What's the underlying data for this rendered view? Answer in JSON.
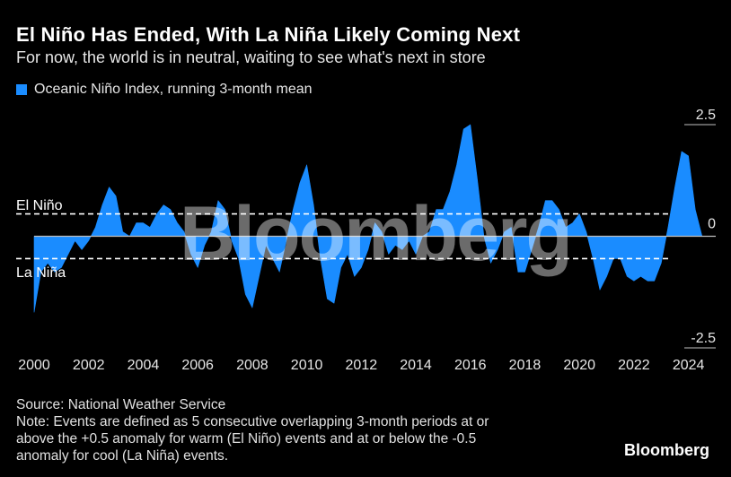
{
  "header": {
    "title": "El Niño Has Ended, With La Niña Likely Coming Next",
    "subtitle": "For now, the world is in neutral, waiting to see what's next in store"
  },
  "legend": {
    "label": "Oceanic Niño Index, running 3-month mean",
    "color": "#1a8cff"
  },
  "watermark": "Bloomberg",
  "thresholds": {
    "el_nino_label": "El Niño",
    "la_nina_label": "La Niña",
    "el_nino": 0.5,
    "la_nina": -0.5
  },
  "footer": {
    "source": "Source: National Weather Service",
    "note_lines": [
      "Note: Events are defined as 5 consecutive overlapping 3-month periods at or",
      "above the +0.5 anomaly for warm (El Niño) events and at or below the -0.5",
      "anomaly for cool (La Niña) events."
    ],
    "brand": "Bloomberg"
  },
  "chart_data": {
    "type": "area",
    "title": "El Niño Has Ended, With La Niña Likely Coming Next",
    "series": [
      {
        "name": "Oceanic Niño Index, running 3-month mean",
        "color": "#1a8cff",
        "x": [
          2000.0,
          2000.25,
          2000.5,
          2000.75,
          2001.0,
          2001.25,
          2001.5,
          2001.75,
          2002.0,
          2002.25,
          2002.5,
          2002.75,
          2003.0,
          2003.25,
          2003.5,
          2003.75,
          2004.0,
          2004.25,
          2004.5,
          2004.75,
          2005.0,
          2005.25,
          2005.5,
          2005.75,
          2006.0,
          2006.25,
          2006.5,
          2006.75,
          2007.0,
          2007.25,
          2007.5,
          2007.75,
          2008.0,
          2008.25,
          2008.5,
          2008.75,
          2009.0,
          2009.25,
          2009.5,
          2009.75,
          2010.0,
          2010.25,
          2010.5,
          2010.75,
          2011.0,
          2011.25,
          2011.5,
          2011.75,
          2012.0,
          2012.25,
          2012.5,
          2012.75,
          2013.0,
          2013.25,
          2013.5,
          2013.75,
          2014.0,
          2014.25,
          2014.5,
          2014.75,
          2015.0,
          2015.25,
          2015.5,
          2015.75,
          2016.0,
          2016.25,
          2016.5,
          2016.75,
          2017.0,
          2017.25,
          2017.5,
          2017.75,
          2018.0,
          2018.25,
          2018.5,
          2018.75,
          2019.0,
          2019.25,
          2019.5,
          2019.75,
          2020.0,
          2020.25,
          2020.5,
          2020.75,
          2021.0,
          2021.25,
          2021.5,
          2021.75,
          2022.0,
          2022.25,
          2022.5,
          2022.75,
          2023.0,
          2023.25,
          2023.5,
          2023.75,
          2024.0,
          2024.25,
          2024.5
        ],
        "values": [
          -1.7,
          -0.8,
          -0.6,
          -0.8,
          -0.7,
          -0.4,
          -0.1,
          -0.3,
          -0.1,
          0.2,
          0.7,
          1.1,
          0.9,
          0.1,
          0.0,
          0.3,
          0.3,
          0.2,
          0.5,
          0.7,
          0.6,
          0.3,
          0.1,
          -0.4,
          -0.7,
          -0.2,
          0.1,
          0.8,
          0.6,
          -0.1,
          -0.5,
          -1.3,
          -1.6,
          -0.9,
          -0.2,
          -0.5,
          -0.8,
          -0.1,
          0.6,
          1.2,
          1.6,
          0.7,
          -0.5,
          -1.4,
          -1.5,
          -0.7,
          -0.4,
          -0.9,
          -0.7,
          -0.3,
          0.3,
          0.1,
          -0.4,
          -0.2,
          -0.3,
          -0.1,
          -0.4,
          0.0,
          0.1,
          0.6,
          0.6,
          1.0,
          1.6,
          2.4,
          2.5,
          1.3,
          0.0,
          -0.6,
          -0.3,
          0.1,
          0.2,
          -0.8,
          -0.8,
          -0.3,
          0.2,
          0.8,
          0.8,
          0.6,
          0.2,
          0.3,
          0.5,
          0.1,
          -0.5,
          -1.2,
          -0.9,
          -0.5,
          -0.5,
          -0.9,
          -1.0,
          -0.9,
          -1.0,
          -1.0,
          -0.6,
          0.2,
          1.1,
          1.9,
          1.8,
          0.6,
          0.0
        ]
      }
    ],
    "xlim": [
      2000,
      2025
    ],
    "ylim": [
      -2.5,
      2.5
    ],
    "x_ticks": [
      "2000",
      "2002",
      "2004",
      "2006",
      "2008",
      "2010",
      "2012",
      "2014",
      "2016",
      "2018",
      "2020",
      "2022",
      "2024"
    ],
    "y_ticks": [
      "2.5",
      "0",
      "-2.5"
    ],
    "reference_lines": [
      0.5,
      -0.5
    ],
    "xlabel": "",
    "ylabel": ""
  }
}
